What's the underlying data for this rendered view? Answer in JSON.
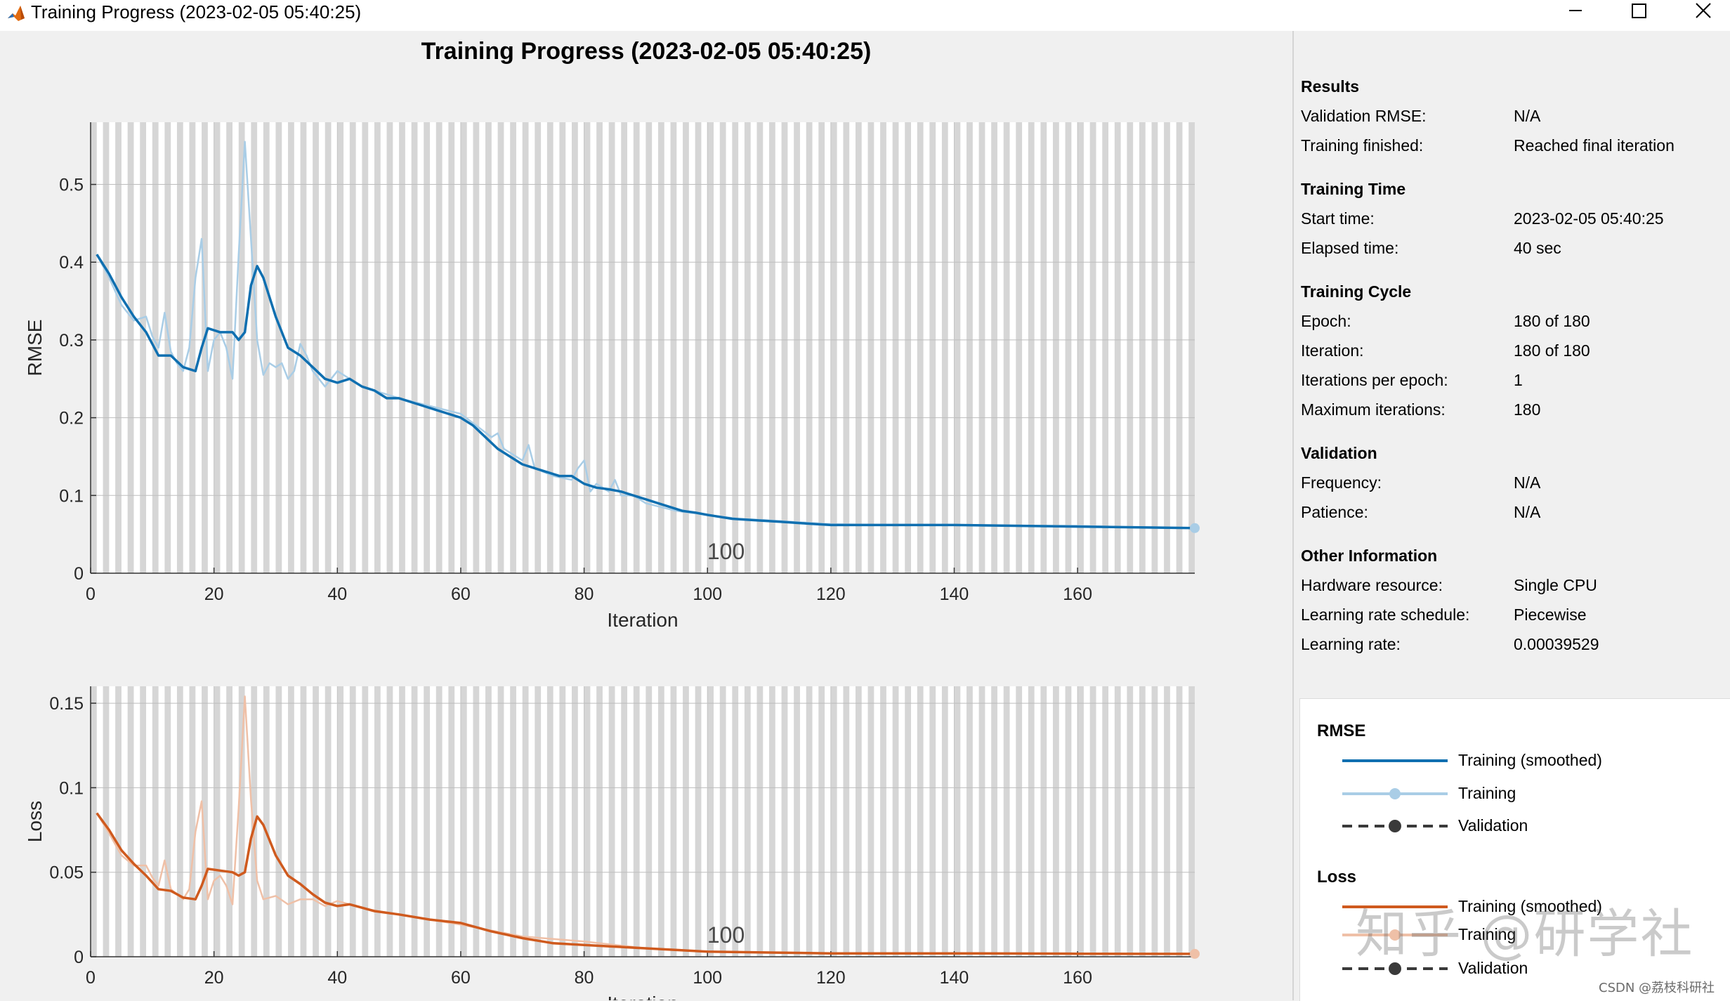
{
  "window": {
    "title": "Training Progress (2023-02-05 05:40:25)",
    "controls": [
      "minimize",
      "maximize",
      "close"
    ]
  },
  "figure_title": "Training Progress (2023-02-05 05:40:25)",
  "info": {
    "results": {
      "heading": "Results",
      "rows": [
        {
          "label": "Validation RMSE:",
          "value": "N/A"
        },
        {
          "label": "Training finished:",
          "value": "Reached final iteration"
        }
      ]
    },
    "training_time": {
      "heading": "Training Time",
      "rows": [
        {
          "label": "Start time:",
          "value": "2023-02-05 05:40:25"
        },
        {
          "label": "Elapsed time:",
          "value": "40 sec"
        }
      ]
    },
    "training_cycle": {
      "heading": "Training Cycle",
      "rows": [
        {
          "label": "Epoch:",
          "value": "180 of 180"
        },
        {
          "label": "Iteration:",
          "value": "180 of 180"
        },
        {
          "label": "Iterations per epoch:",
          "value": "1"
        },
        {
          "label": "Maximum iterations:",
          "value": "180"
        }
      ]
    },
    "validation": {
      "heading": "Validation",
      "rows": [
        {
          "label": "Frequency:",
          "value": "N/A"
        },
        {
          "label": "Patience:",
          "value": "N/A"
        }
      ]
    },
    "other": {
      "heading": "Other Information",
      "rows": [
        {
          "label": "Hardware resource:",
          "value": "Single CPU"
        },
        {
          "label": "Learning rate schedule:",
          "value": "Piecewise"
        },
        {
          "label": "Learning rate:",
          "value": "0.00039529"
        }
      ]
    }
  },
  "legend": {
    "rmse_heading": "RMSE",
    "rmse_items": [
      "Training (smoothed)",
      "Training",
      "Validation"
    ],
    "loss_heading": "Loss",
    "loss_items": [
      "Training (smoothed)",
      "Training",
      "Validation"
    ]
  },
  "colors": {
    "rmse_smoothed": "#0f6fb0",
    "rmse_raw": "#a9cde6",
    "loss_smoothed": "#cf5a1e",
    "loss_raw": "#efc0a7",
    "validation": "#3a3a3a",
    "epoch_band": "#d6d6d6",
    "axes_bg": "#ffffff"
  },
  "watermark": "知乎 @研学社",
  "credit": "CSDN @荔枝科研社",
  "chart_data": [
    {
      "type": "line",
      "ylabel": "RMSE",
      "xlabel": "Iteration",
      "xlim": [
        0,
        179
      ],
      "ylim": [
        0,
        0.58
      ],
      "xticks": [
        0,
        20,
        40,
        60,
        80,
        100,
        120,
        140,
        160
      ],
      "yticks": [
        0,
        0.1,
        0.2,
        0.3,
        0.4,
        0.5
      ],
      "ytick_labels": [
        "0",
        "0.1",
        "0.2",
        "0.3",
        "0.4",
        "0.5"
      ],
      "annotation": "100",
      "grid": true,
      "epoch_bands": true,
      "series": [
        {
          "name": "Training (smoothed)",
          "x": [
            1,
            3,
            5,
            7,
            9,
            11,
            13,
            15,
            17,
            18,
            19,
            21,
            23,
            24,
            25,
            26,
            27,
            28,
            30,
            32,
            34,
            36,
            38,
            40,
            42,
            44,
            46,
            48,
            50,
            52,
            54,
            56,
            58,
            60,
            62,
            64,
            66,
            68,
            70,
            72,
            74,
            76,
            78,
            80,
            82,
            84,
            86,
            88,
            90,
            92,
            94,
            96,
            98,
            100,
            104,
            108,
            112,
            116,
            120,
            125,
            130,
            135,
            140,
            150,
            160,
            170,
            179
          ],
          "y": [
            0.41,
            0.385,
            0.355,
            0.33,
            0.31,
            0.28,
            0.28,
            0.265,
            0.26,
            0.29,
            0.315,
            0.31,
            0.31,
            0.3,
            0.31,
            0.37,
            0.395,
            0.38,
            0.33,
            0.29,
            0.28,
            0.265,
            0.25,
            0.245,
            0.25,
            0.24,
            0.235,
            0.225,
            0.225,
            0.22,
            0.215,
            0.21,
            0.205,
            0.2,
            0.19,
            0.175,
            0.16,
            0.15,
            0.14,
            0.135,
            0.13,
            0.125,
            0.125,
            0.115,
            0.11,
            0.108,
            0.105,
            0.1,
            0.095,
            0.09,
            0.085,
            0.08,
            0.078,
            0.075,
            0.07,
            0.068,
            0.066,
            0.064,
            0.062,
            0.062,
            0.062,
            0.062,
            0.062,
            0.061,
            0.06,
            0.059,
            0.058
          ]
        },
        {
          "name": "Training",
          "x": [
            1,
            3,
            5,
            7,
            9,
            10,
            11,
            12,
            13,
            14,
            15,
            16,
            17,
            18,
            19,
            20,
            21,
            22,
            23,
            24,
            25,
            26,
            27,
            28,
            29,
            30,
            31,
            32,
            33,
            34,
            35,
            36,
            38,
            40,
            42,
            44,
            46,
            50,
            55,
            60,
            65,
            66,
            67,
            68,
            70,
            71,
            72,
            75,
            78,
            79,
            80,
            81,
            82,
            84,
            85,
            86,
            88,
            90,
            95,
            100,
            105,
            110,
            120,
            130,
            140,
            150,
            160,
            170,
            179
          ],
          "y": [
            0.41,
            0.38,
            0.345,
            0.325,
            0.33,
            0.305,
            0.29,
            0.335,
            0.285,
            0.27,
            0.26,
            0.29,
            0.38,
            0.43,
            0.26,
            0.3,
            0.31,
            0.29,
            0.25,
            0.41,
            0.555,
            0.43,
            0.3,
            0.255,
            0.27,
            0.265,
            0.27,
            0.25,
            0.26,
            0.295,
            0.28,
            0.26,
            0.24,
            0.26,
            0.25,
            0.24,
            0.235,
            0.225,
            0.215,
            0.205,
            0.175,
            0.18,
            0.16,
            0.155,
            0.145,
            0.165,
            0.135,
            0.125,
            0.12,
            0.135,
            0.145,
            0.105,
            0.115,
            0.105,
            0.12,
            0.1,
            0.1,
            0.09,
            0.08,
            0.075,
            0.07,
            0.068,
            0.063,
            0.062,
            0.062,
            0.061,
            0.061,
            0.059,
            0.058
          ]
        }
      ]
    },
    {
      "type": "line",
      "ylabel": "Loss",
      "xlabel": "Iteration",
      "xlim": [
        0,
        179
      ],
      "ylim": [
        0,
        0.16
      ],
      "xticks": [
        0,
        20,
        40,
        60,
        80,
        100,
        120,
        140,
        160
      ],
      "yticks": [
        0,
        0.05,
        0.1,
        0.15
      ],
      "ytick_labels": [
        "0",
        "0.05",
        "0.1",
        "0.15"
      ],
      "annotation": "100",
      "grid": true,
      "epoch_bands": true,
      "series": [
        {
          "name": "Training (smoothed)",
          "x": [
            1,
            3,
            5,
            7,
            9,
            11,
            13,
            15,
            17,
            18,
            19,
            21,
            23,
            24,
            25,
            26,
            27,
            28,
            30,
            32,
            34,
            36,
            38,
            40,
            42,
            44,
            46,
            50,
            55,
            60,
            65,
            70,
            75,
            80,
            85,
            90,
            95,
            100,
            110,
            120,
            140,
            160,
            179
          ],
          "y": [
            0.085,
            0.075,
            0.063,
            0.055,
            0.048,
            0.04,
            0.039,
            0.035,
            0.034,
            0.042,
            0.052,
            0.051,
            0.05,
            0.048,
            0.05,
            0.07,
            0.083,
            0.078,
            0.06,
            0.048,
            0.043,
            0.037,
            0.032,
            0.03,
            0.031,
            0.029,
            0.027,
            0.025,
            0.022,
            0.02,
            0.015,
            0.011,
            0.008,
            0.007,
            0.006,
            0.005,
            0.004,
            0.003,
            0.0025,
            0.002,
            0.002,
            0.0018,
            0.0017
          ]
        },
        {
          "name": "Training",
          "x": [
            1,
            3,
            5,
            7,
            9,
            10,
            11,
            12,
            13,
            14,
            15,
            16,
            17,
            18,
            19,
            20,
            21,
            22,
            23,
            24,
            25,
            26,
            27,
            28,
            30,
            32,
            34,
            36,
            38,
            40,
            45,
            50,
            60,
            70,
            80,
            90,
            100,
            120,
            140,
            160,
            179
          ],
          "y": [
            0.085,
            0.073,
            0.06,
            0.054,
            0.054,
            0.047,
            0.042,
            0.057,
            0.04,
            0.037,
            0.034,
            0.04,
            0.074,
            0.092,
            0.034,
            0.045,
            0.048,
            0.042,
            0.031,
            0.088,
            0.154,
            0.093,
            0.045,
            0.034,
            0.036,
            0.031,
            0.034,
            0.034,
            0.03,
            0.033,
            0.028,
            0.025,
            0.019,
            0.012,
            0.009,
            0.005,
            0.003,
            0.002,
            0.002,
            0.0018,
            0.0017
          ]
        }
      ]
    }
  ]
}
